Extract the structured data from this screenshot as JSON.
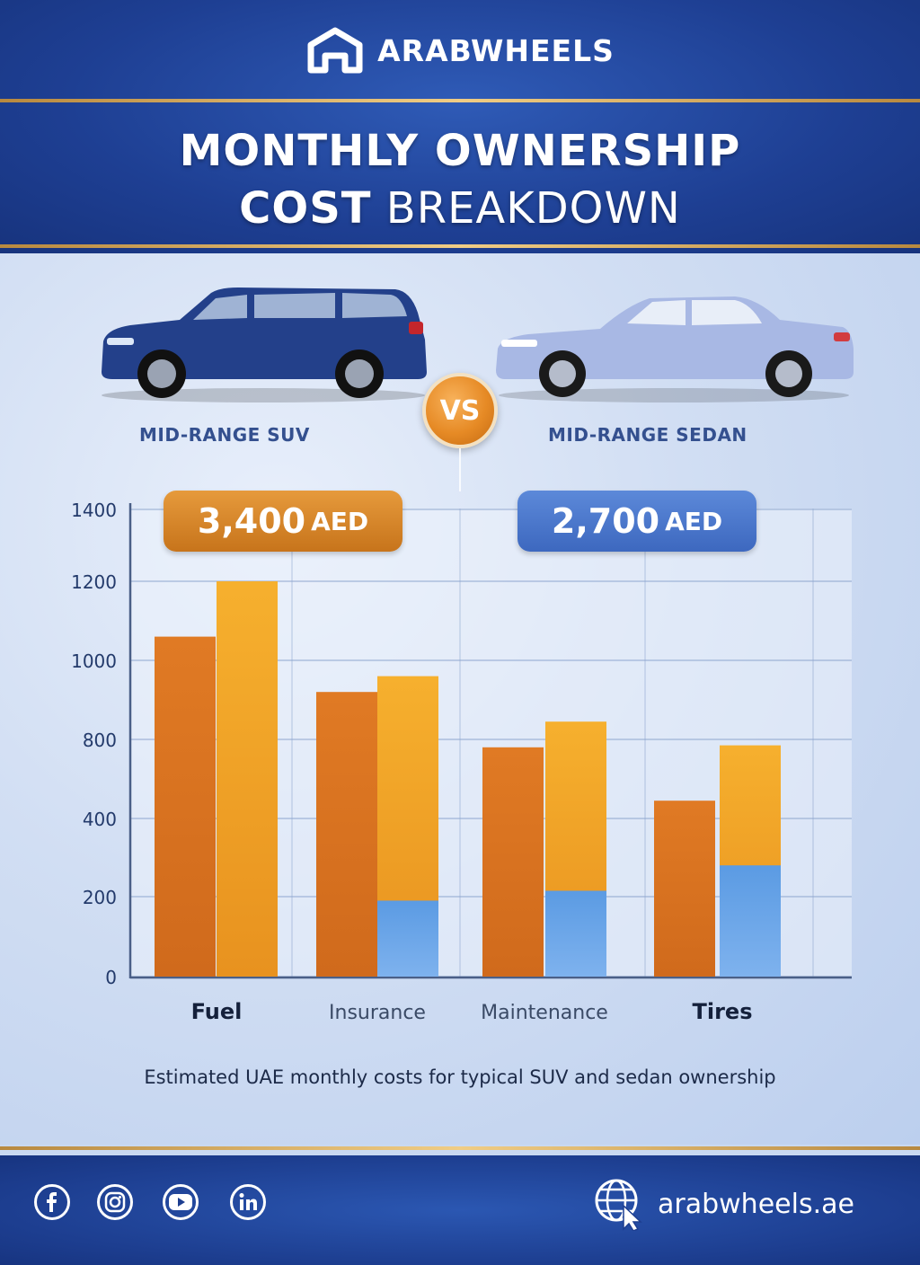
{
  "brand": {
    "name": "ARABWHEELS",
    "logo_icon": "house-icon"
  },
  "title": {
    "line1": "MONTHLY OWNERSHIP",
    "line2_bold": "COST",
    "line2_regular": "BREAKDOWN"
  },
  "comparison": {
    "left_label": "MID-RANGE SUV",
    "right_label": "MID-RANGE SEDAN",
    "vs_label": "VS",
    "left_total_value": "3,400",
    "left_total_unit": "AED",
    "right_total_value": "2,700",
    "right_total_unit": "AED",
    "colors": {
      "suv": "#d9741f",
      "sedan": "#f0a62b",
      "blue": "#5a95dd"
    }
  },
  "chart_data": {
    "type": "bar",
    "title": "",
    "xlabel": "",
    "ylabel": "",
    "categories": [
      "Fuel",
      "Insurance",
      "Maintenance",
      "Tires"
    ],
    "y_ticks": [
      0,
      200,
      400,
      800,
      1000,
      1200,
      1400
    ],
    "series": [
      {
        "values": [
          1060,
          920,
          760,
          490
        ]
      },
      {
        "values": [
          1200,
          960,
          845,
          770
        ],
        "lower_segment": [
          0,
          190,
          215,
          280
        ]
      }
    ],
    "grid": true
  },
  "caption": "Estimated UAE monthly costs for typical SUV and sedan ownership",
  "footer": {
    "social": [
      "facebook-icon",
      "instagram-icon",
      "youtube-icon",
      "linkedin-icon"
    ],
    "website": "arabwheels.ae",
    "website_icon": "globe-cursor-icon"
  }
}
